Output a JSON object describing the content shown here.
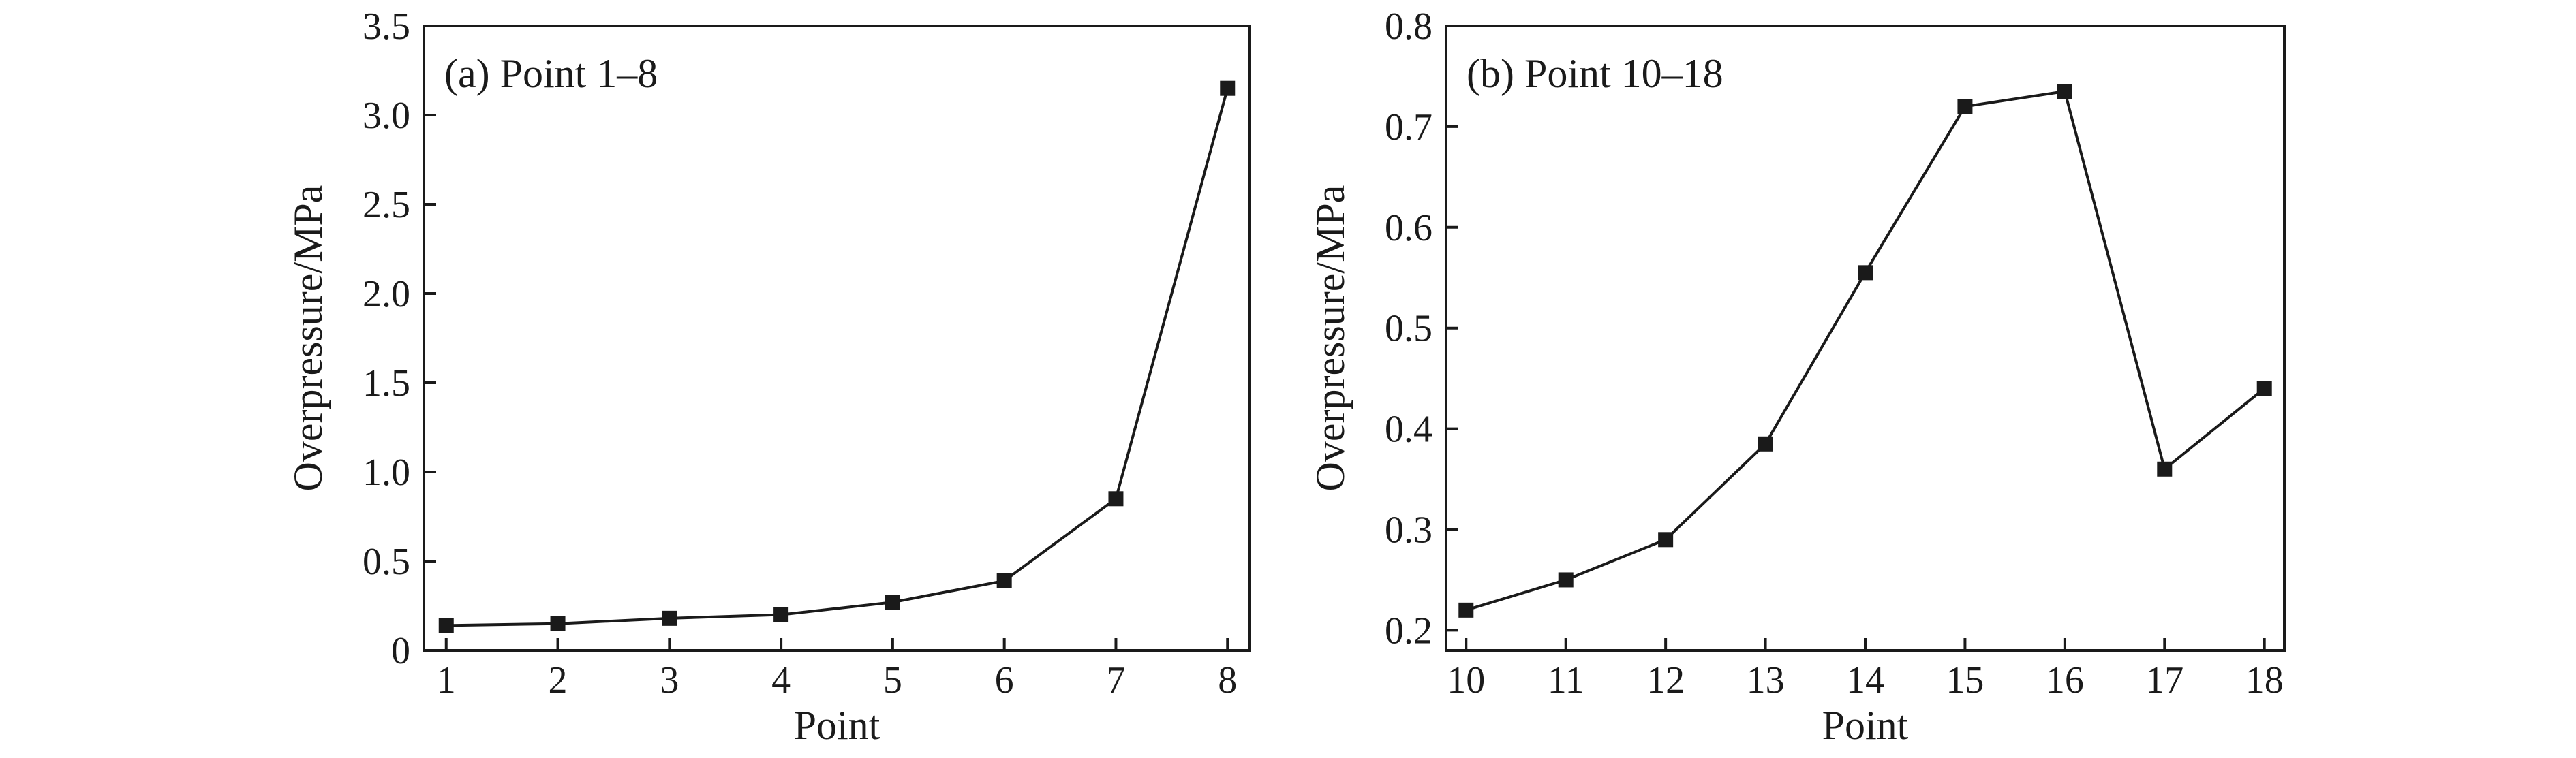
{
  "chart_data": [
    {
      "type": "line",
      "title": "(a) Point 1–8",
      "xlabel": "Point",
      "ylabel": "Overpressure/MPa",
      "x": [
        1,
        2,
        3,
        4,
        5,
        6,
        7,
        8
      ],
      "xticks": [
        "1",
        "2",
        "3",
        "4",
        "5",
        "6",
        "7",
        "8"
      ],
      "xlim": [
        0.8,
        8.2
      ],
      "ylim": [
        0,
        3.5
      ],
      "yticks": [
        0,
        0.5,
        1.0,
        1.5,
        2.0,
        2.5,
        3.0,
        3.5
      ],
      "ytick_labels": [
        "0",
        "0.5",
        "1.0",
        "1.5",
        "2.0",
        "2.5",
        "3.0",
        "3.5"
      ],
      "series": [
        {
          "values": [
            0.14,
            0.15,
            0.18,
            0.2,
            0.27,
            0.39,
            0.85,
            3.15
          ],
          "marker": "square",
          "color": "#1a1a1a"
        }
      ],
      "grid": false
    },
    {
      "type": "line",
      "title": "(b) Point 10–18",
      "xlabel": "Point",
      "ylabel": "Overpressure/MPa",
      "x": [
        10,
        11,
        12,
        13,
        14,
        15,
        16,
        17,
        18
      ],
      "xticks": [
        "10",
        "11",
        "12",
        "13",
        "14",
        "15",
        "16",
        "17",
        "18"
      ],
      "xlim": [
        9.8,
        18.2
      ],
      "ylim": [
        0.18,
        0.8
      ],
      "yticks": [
        0.2,
        0.3,
        0.4,
        0.5,
        0.6,
        0.7,
        0.8
      ],
      "ytick_labels": [
        "0.2",
        "0.3",
        "0.4",
        "0.5",
        "0.6",
        "0.7",
        "0.8"
      ],
      "series": [
        {
          "values": [
            0.22,
            0.25,
            0.29,
            0.385,
            0.555,
            0.72,
            0.735,
            0.36,
            0.44
          ],
          "marker": "square",
          "color": "#1a1a1a"
        }
      ],
      "grid": false
    }
  ]
}
